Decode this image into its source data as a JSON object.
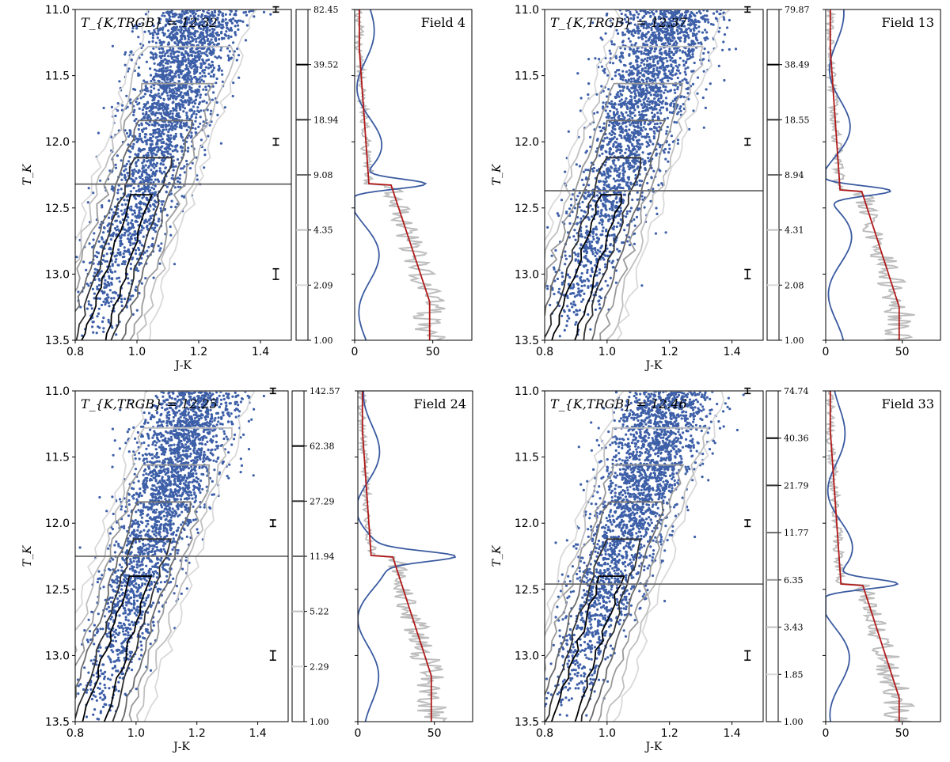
{
  "colors": {
    "points": "#3d5fa8",
    "trgb_line": "#6e6e6e",
    "lf_raw": "#bdbdbd",
    "lf_smooth": "#b01818",
    "edge_response": "#3a5aa0",
    "contour_levels": [
      "#d9d9d9",
      "#bfbfbf",
      "#9a9a9a",
      "#6a6a6a",
      "#303030",
      "#000000"
    ]
  },
  "chart_data": [
    {
      "type": "scatter",
      "field": "Field 4",
      "trgb_label": "T_{K,TRGB} = 12.32",
      "trgb": 12.32,
      "xlabel": "J-K",
      "ylabel": "T_K",
      "xlim": [
        0.8,
        1.5
      ],
      "ylim": [
        13.5,
        11.0
      ],
      "xticks": [
        "0.8",
        "1.0",
        "1.2",
        "1.4"
      ],
      "yticks": [
        "11.0",
        "11.5",
        "12.0",
        "12.5",
        "13.0",
        "13.5"
      ],
      "colorbar_ticks": [
        "1.00",
        "2.09",
        "4.35",
        "9.08",
        "18.94",
        "39.52",
        "82.45"
      ],
      "lf_xticks": [
        "0",
        "50"
      ],
      "lf_xlim": [
        0,
        75
      ],
      "error_bars": [
        {
          "T": 11.0,
          "half": 0.02
        },
        {
          "T": 12.0,
          "half": 0.025
        },
        {
          "T": 13.0,
          "half": 0.04
        }
      ]
    },
    {
      "type": "scatter",
      "field": "Field 13",
      "trgb_label": "T_{K,TRGB} = 12.37",
      "trgb": 12.37,
      "xlabel": "J-K",
      "ylabel": "T_K",
      "xlim": [
        0.8,
        1.5
      ],
      "ylim": [
        13.5,
        11.0
      ],
      "xticks": [
        "0.8",
        "1.0",
        "1.2",
        "1.4"
      ],
      "yticks": [
        "11.0",
        "11.5",
        "12.0",
        "12.5",
        "13.0",
        "13.5"
      ],
      "colorbar_ticks": [
        "1.00",
        "2.08",
        "4.31",
        "8.94",
        "18.55",
        "38.49",
        "79.87"
      ],
      "lf_xticks": [
        "0",
        "50"
      ],
      "lf_xlim": [
        0,
        75
      ],
      "error_bars": [
        {
          "T": 11.0,
          "half": 0.02
        },
        {
          "T": 12.0,
          "half": 0.025
        },
        {
          "T": 13.0,
          "half": 0.035
        }
      ]
    },
    {
      "type": "scatter",
      "field": "Field 24",
      "trgb_label": "T_{K,TRGB} = 12.25",
      "trgb": 12.25,
      "xlabel": "J-K",
      "ylabel": "T_K",
      "xlim": [
        0.8,
        1.5
      ],
      "ylim": [
        13.5,
        11.0
      ],
      "xticks": [
        "0.8",
        "1.0",
        "1.2",
        "1.4"
      ],
      "yticks": [
        "11.0",
        "11.5",
        "12.0",
        "12.5",
        "13.0",
        "13.5"
      ],
      "colorbar_ticks": [
        "1.00",
        "2.29",
        "5.22",
        "11.94",
        "27.29",
        "62.38",
        "142.57"
      ],
      "lf_xticks": [
        "0",
        "50"
      ],
      "lf_xlim": [
        0,
        75
      ],
      "error_bars": [
        {
          "T": 11.0,
          "half": 0.02
        },
        {
          "T": 12.0,
          "half": 0.025
        },
        {
          "T": 13.0,
          "half": 0.035
        }
      ]
    },
    {
      "type": "scatter",
      "field": "Field 33",
      "trgb_label": "T_{K,TRGB} = 12.46",
      "trgb": 12.46,
      "xlabel": "J-K",
      "ylabel": "T_K",
      "xlim": [
        0.8,
        1.5
      ],
      "ylim": [
        13.5,
        11.0
      ],
      "xticks": [
        "0.8",
        "1.0",
        "1.2",
        "1.4"
      ],
      "yticks": [
        "11.0",
        "11.5",
        "12.0",
        "12.5",
        "13.0",
        "13.5"
      ],
      "colorbar_ticks": [
        "1.00",
        "1.85",
        "3.43",
        "6.35",
        "11.77",
        "21.79",
        "40.36",
        "74.74"
      ],
      "lf_xticks": [
        "0",
        "50"
      ],
      "lf_xlim": [
        0,
        75
      ],
      "error_bars": [
        {
          "T": 11.0,
          "half": 0.02
        },
        {
          "T": 12.0,
          "half": 0.025
        },
        {
          "T": 13.0,
          "half": 0.035
        }
      ]
    }
  ]
}
